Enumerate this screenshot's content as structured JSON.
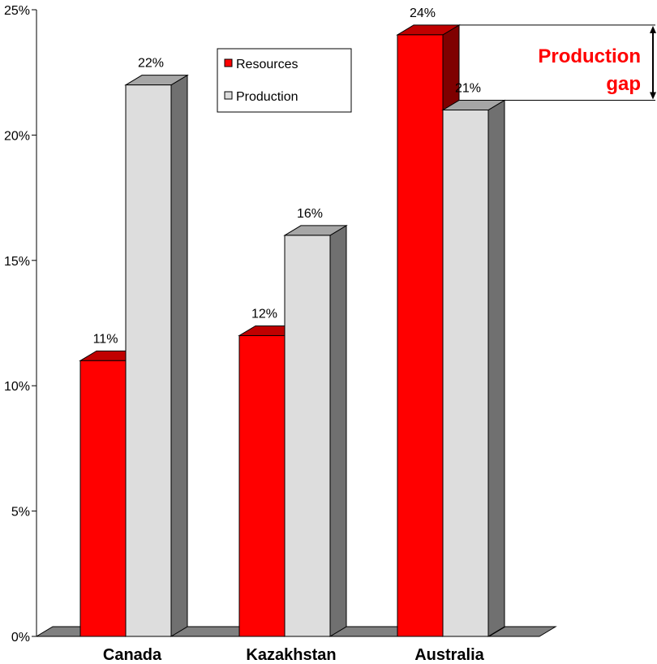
{
  "chart_data": {
    "type": "bar",
    "categories": [
      "Canada",
      "Kazakhstan",
      "Australia"
    ],
    "series": [
      {
        "name": "Resources",
        "values": [
          11,
          12,
          24
        ],
        "color": "#FF0000",
        "top_color": "#C00000",
        "side_color": "#7F0000"
      },
      {
        "name": "Production",
        "values": [
          22,
          16,
          21
        ],
        "color": "#DDDDDD",
        "top_color": "#A6A6A6",
        "side_color": "#707070"
      }
    ],
    "data_labels": [
      [
        "11%",
        "12%",
        "24%"
      ],
      [
        "22%",
        "16%",
        "21%"
      ]
    ],
    "ylim": [
      0,
      25
    ],
    "y_ticks": [
      0,
      5,
      10,
      15,
      20,
      25
    ],
    "y_tick_labels": [
      "0%",
      "5%",
      "10%",
      "15%",
      "20%",
      "25%"
    ],
    "xlabel": "",
    "ylabel": "",
    "legend_position": "top-center",
    "annotation": {
      "text_line1": "Production",
      "text_line2": "gap",
      "color": "#FF0000",
      "category": "Australia"
    }
  }
}
